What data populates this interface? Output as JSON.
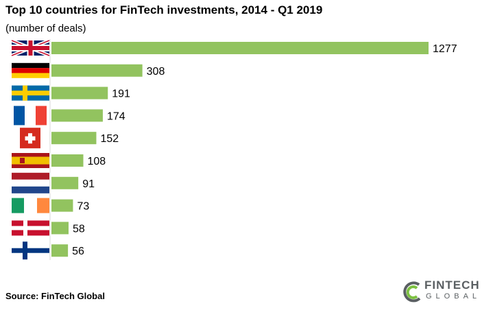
{
  "chart_data": {
    "type": "bar",
    "orientation": "horizontal",
    "title": "Top 10 countries for FinTech investments, 2014 - Q1 2019",
    "subtitle": "(number of deals)",
    "categories": [
      "United Kingdom",
      "Germany",
      "Sweden",
      "France",
      "Switzerland",
      "Spain",
      "Netherlands",
      "Ireland",
      "Denmark",
      "Finland"
    ],
    "values": [
      1277,
      308,
      191,
      174,
      152,
      108,
      91,
      73,
      58,
      56
    ],
    "xlim": [
      0,
      1300
    ],
    "grid": false,
    "bar_color": "#92c35f",
    "category_labels_shown_as": "flag icons"
  },
  "source": "Source: FinTech Global",
  "logo": {
    "line1": "FINTECH",
    "line2": "GLOBAL",
    "primary_color": "#5a5f62",
    "accent_color": "#7dc142"
  }
}
